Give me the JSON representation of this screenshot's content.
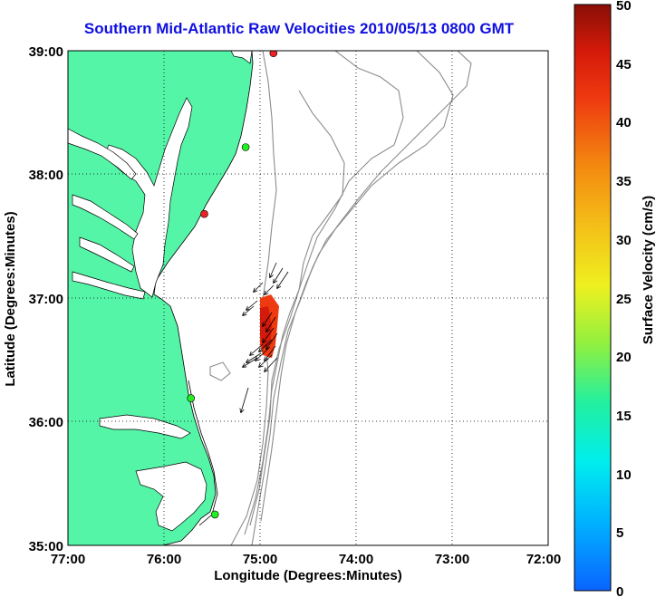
{
  "title": "Southern Mid-Atlantic Raw Velocities 2010/05/13 0800 GMT",
  "x_axis": {
    "label": "Longitude (Degrees:Minutes)",
    "ticks": [
      "77:00",
      "76:00",
      "75:00",
      "74:00",
      "73:00",
      "72:00"
    ]
  },
  "y_axis": {
    "label": "Latitude (Degrees:Minutes)",
    "ticks": [
      "39:00",
      "38:00",
      "37:00",
      "36:00",
      "35:00"
    ]
  },
  "colorbar": {
    "label": "Surface Velocity (cm/s)",
    "ticks": [
      "50",
      "45",
      "40",
      "35",
      "30",
      "25",
      "20",
      "15",
      "10",
      "5",
      "0"
    ],
    "range": [
      0,
      50
    ]
  },
  "colors": {
    "land": "#55f5a8",
    "coastline": "#000000",
    "bathymetry": "#8c8c8c",
    "grid": "#000000",
    "title": "#1010e0",
    "station_green": "#22ee22",
    "station_red": "#ee2222",
    "velocity_patch": "#ee3a10"
  },
  "chart_data": {
    "type": "map",
    "extent": {
      "lon": [
        -77,
        -72
      ],
      "lat": [
        35,
        39
      ]
    },
    "grid": true,
    "stations": [
      {
        "lon": -74.86,
        "lat": 38.98,
        "color": "red"
      },
      {
        "lon": -75.15,
        "lat": 38.22,
        "color": "green"
      },
      {
        "lon": -75.58,
        "lat": 37.68,
        "color": "red"
      },
      {
        "lon": -75.72,
        "lat": 36.19,
        "color": "green"
      },
      {
        "lon": -75.47,
        "lat": 35.25,
        "color": "green"
      }
    ]
  }
}
